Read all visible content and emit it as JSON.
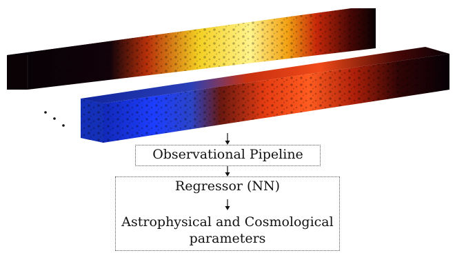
{
  "pipeline": {
    "observational_label": "Observational Pipeline",
    "regressor_label": "Regressor (NN)",
    "output_label_line1": "Astrophysical and Cosmological",
    "output_label_line2": "parameters"
  },
  "colors": {
    "box_border": "#555555",
    "arrow": "#111111",
    "top_cube_gradient": [
      "#050005",
      "#1a0408",
      "#c23a08",
      "#f7d21e",
      "#fff27a",
      "#f6b418",
      "#d0300a",
      "#5a0a06",
      "#0a0104"
    ],
    "bottom_cube_gradient": [
      "#0b1e8a",
      "#1b3cff",
      "#2748d8",
      "#7a1a10",
      "#e23a10",
      "#ff5a1e",
      "#a8180a",
      "#2a0404",
      "#050006"
    ]
  }
}
